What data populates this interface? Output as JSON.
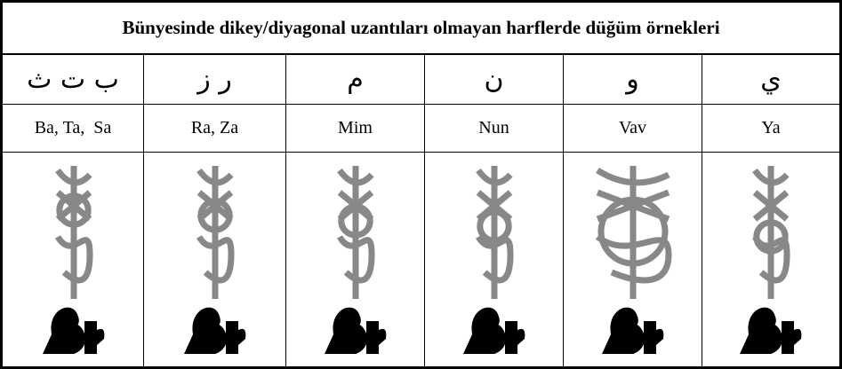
{
  "header": {
    "title": "Bünyesinde dikey/diyagonal uzantıları olmayan harflerde düğüm örnekleri"
  },
  "table": {
    "rows": [
      [
        "ب ت ث",
        "ر ز",
        "م",
        "ن",
        "و",
        "ي"
      ],
      [
        "Ba, Ta,  Sa",
        "Ra, Za",
        "Mim",
        "Nun",
        "Vav",
        "Ya"
      ]
    ]
  }
}
